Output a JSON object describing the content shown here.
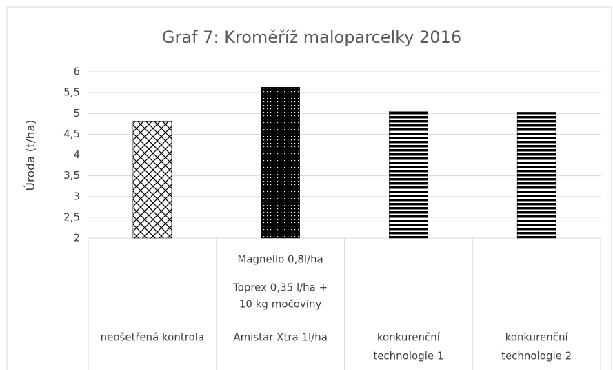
{
  "chart_data": {
    "type": "bar",
    "title": "Graf 7: Kroměříž maloparcelky 2016",
    "ylabel": "Úroda (t/ha)",
    "categories": [
      [
        "neošetřená kontrola"
      ],
      [
        "Magnello 0,8l/ha",
        "Toprex 0,35 l/ha +",
        "10 kg močoviny",
        "Amistar Xtra 1l/ha"
      ],
      [
        "konkurenční",
        "technologie 1"
      ],
      [
        "konkurenční",
        "technologie 2"
      ]
    ],
    "values": [
      4.8,
      5.63,
      5.05,
      5.03
    ],
    "patterns": [
      "crosshatch",
      "dots",
      "hstripes",
      "hstripes"
    ],
    "color": "#000000",
    "ylim": [
      2,
      6
    ],
    "yticks": [
      2,
      {
        "value": 2.5,
        "label": "2,5"
      },
      3,
      {
        "value": 3.5,
        "label": "3,5"
      },
      4,
      {
        "value": 4.5,
        "label": "4,5"
      },
      5,
      {
        "value": 5.5,
        "label": "5,5"
      },
      6
    ],
    "grid": true
  }
}
